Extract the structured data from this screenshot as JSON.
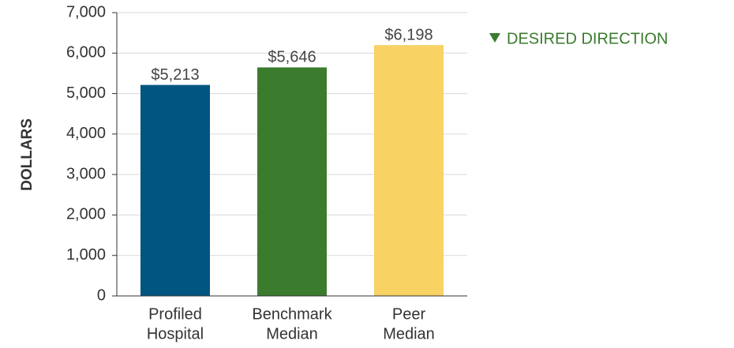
{
  "chart_data": {
    "type": "bar",
    "y_label": "DOLLARS",
    "annotation": "DESIRED DIRECTION",
    "annotation_color": "#3a7b2e",
    "categories": [
      [
        "Profiled",
        "Hospital"
      ],
      [
        "Benchmark",
        "Median"
      ],
      [
        "Peer",
        "Median"
      ]
    ],
    "values": [
      5213,
      5646,
      6198
    ],
    "value_labels": [
      "$5,213",
      "$5,646",
      "$6,198"
    ],
    "colors": [
      "#005581",
      "#3a7b2e",
      "#f9d264"
    ],
    "ylim": [
      0,
      7000
    ],
    "yticks": [
      0,
      {
        "value": 1000,
        "label": "1,000"
      },
      {
        "value": 2000,
        "label": "2,000"
      },
      {
        "value": 3000,
        "label": "3,000"
      },
      {
        "value": 4000,
        "label": "4,000"
      },
      {
        "value": 5000,
        "label": "5,000"
      },
      {
        "value": 6000,
        "label": "6,000"
      },
      {
        "value": 7000,
        "label": "7,000"
      }
    ],
    "grid": true
  }
}
